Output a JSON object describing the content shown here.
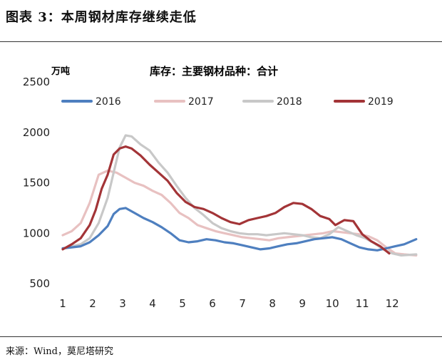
{
  "figure": {
    "title": "图表 3：本周钢材库存继续走低",
    "source": "来源：Wind，莫尼塔研究"
  },
  "chart_data": {
    "type": "line",
    "title": "库存：主要钢材品种：合计",
    "ylabel": "万吨",
    "xlabel": "",
    "xlim": [
      1,
      12.9
    ],
    "ylim": [
      500,
      2500
    ],
    "xticks": [
      "1",
      "2",
      "3",
      "4",
      "5",
      "6",
      "7",
      "8",
      "9",
      "10",
      "11",
      "12"
    ],
    "yticks": [
      "500",
      "1000",
      "1500",
      "2000",
      "2500"
    ],
    "grid": false,
    "legend": "top",
    "series": [
      {
        "name": "2016",
        "color": "#4e7fbf",
        "x": [
          1,
          1.3,
          1.6,
          1.9,
          2.2,
          2.5,
          2.7,
          2.9,
          3.1,
          3.4,
          3.7,
          4,
          4.3,
          4.6,
          4.9,
          5.2,
          5.5,
          5.8,
          6.1,
          6.4,
          6.7,
          7,
          7.3,
          7.6,
          7.9,
          8.2,
          8.5,
          8.8,
          9.1,
          9.4,
          9.7,
          10,
          10.3,
          10.6,
          10.9,
          11.2,
          11.5,
          11.8,
          12.1,
          12.4,
          12.8
        ],
        "y": [
          850,
          860,
          870,
          910,
          980,
          1070,
          1190,
          1240,
          1250,
          1200,
          1150,
          1110,
          1060,
          1000,
          930,
          910,
          920,
          940,
          930,
          910,
          900,
          880,
          860,
          840,
          850,
          870,
          890,
          900,
          920,
          940,
          950,
          960,
          940,
          900,
          860,
          840,
          830,
          850,
          870,
          890,
          940
        ]
      },
      {
        "name": "2017",
        "color": "#e8c1c1",
        "x": [
          1,
          1.3,
          1.6,
          1.9,
          2.2,
          2.5,
          2.8,
          3.1,
          3.4,
          3.7,
          4,
          4.3,
          4.6,
          4.9,
          5.2,
          5.5,
          5.8,
          6.1,
          6.4,
          6.7,
          7,
          7.3,
          7.6,
          7.9,
          8.2,
          8.5,
          8.8,
          9.1,
          9.4,
          9.7,
          10,
          10.3,
          10.6,
          10.9,
          11.2,
          11.5,
          11.8,
          12.1,
          12.4,
          12.8
        ],
        "y": [
          980,
          1020,
          1100,
          1300,
          1580,
          1620,
          1600,
          1550,
          1500,
          1470,
          1420,
          1380,
          1300,
          1200,
          1150,
          1080,
          1050,
          1020,
          1000,
          980,
          960,
          950,
          940,
          930,
          950,
          960,
          970,
          980,
          990,
          1000,
          1020,
          1010,
          1000,
          990,
          970,
          930,
          860,
          800,
          790,
          780
        ]
      },
      {
        "name": "2018",
        "color": "#c8c8c8",
        "x": [
          1,
          1.3,
          1.6,
          1.9,
          2.2,
          2.5,
          2.7,
          2.9,
          3.1,
          3.3,
          3.6,
          3.9,
          4.2,
          4.5,
          4.8,
          5.1,
          5.4,
          5.7,
          6,
          6.3,
          6.6,
          6.9,
          7.2,
          7.5,
          7.8,
          8.1,
          8.4,
          8.7,
          9,
          9.3,
          9.6,
          9.9,
          10.2,
          10.5,
          10.8,
          11.1,
          11.4,
          11.7,
          12,
          12.3,
          12.8
        ],
        "y": [
          850,
          870,
          890,
          950,
          1100,
          1350,
          1600,
          1850,
          1970,
          1960,
          1880,
          1820,
          1700,
          1600,
          1470,
          1350,
          1250,
          1180,
          1100,
          1050,
          1020,
          1000,
          990,
          990,
          980,
          990,
          1000,
          990,
          980,
          960,
          950,
          990,
          1060,
          1020,
          980,
          950,
          900,
          840,
          800,
          780,
          790
        ]
      },
      {
        "name": "2019",
        "color": "#a33437",
        "x": [
          1,
          1.3,
          1.6,
          1.9,
          2.1,
          2.3,
          2.5,
          2.7,
          2.9,
          3.1,
          3.3,
          3.6,
          3.9,
          4.2,
          4.5,
          4.8,
          5.1,
          5.4,
          5.7,
          6,
          6.3,
          6.6,
          6.9,
          7.2,
          7.5,
          7.8,
          8.1,
          8.4,
          8.7,
          9,
          9.3,
          9.6,
          9.9,
          10.1,
          10.4,
          10.7,
          11,
          11.3,
          11.6,
          11.9
        ],
        "y": [
          840,
          890,
          950,
          1080,
          1230,
          1440,
          1580,
          1780,
          1840,
          1860,
          1840,
          1770,
          1680,
          1600,
          1520,
          1400,
          1310,
          1260,
          1240,
          1200,
          1150,
          1110,
          1090,
          1130,
          1150,
          1170,
          1200,
          1260,
          1300,
          1290,
          1240,
          1170,
          1140,
          1080,
          1130,
          1120,
          990,
          920,
          870,
          800
        ]
      }
    ]
  }
}
